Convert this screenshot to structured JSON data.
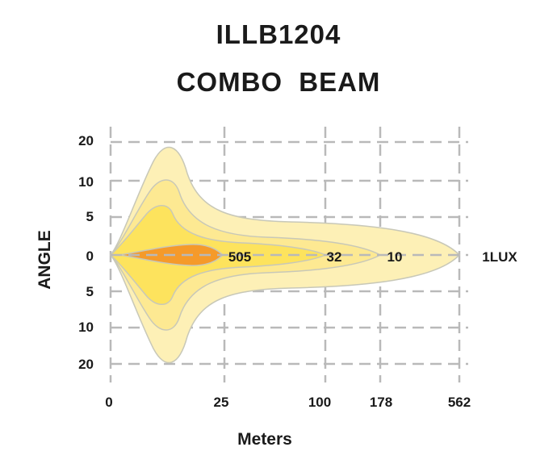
{
  "chart_data": {
    "type": "area",
    "title": "ILLB1204",
    "subtitle": "COMBO  BEAM",
    "xlabel": "Meters",
    "ylabel": "ANGLE",
    "x_ticks": [
      "0",
      "25",
      "100",
      "178",
      "562"
    ],
    "x_tick_values": [
      0,
      25,
      100,
      178,
      562
    ],
    "y_ticks_upper": [
      "20",
      "10",
      "5"
    ],
    "y_tick_center": "0",
    "y_ticks_lower": [
      "5",
      "10",
      "20"
    ],
    "grid": true,
    "series": [
      {
        "name": "1LUX",
        "reach_m": 562,
        "max_angle": 20,
        "color": "#fdf0b6"
      },
      {
        "name": "10",
        "reach_m": 178,
        "max_angle": 10,
        "color": "#fde992"
      },
      {
        "name": "32",
        "reach_m": 100,
        "max_angle": 5,
        "color": "#fde35d"
      },
      {
        "name": "505",
        "reach_m": 25,
        "max_angle": 1,
        "color": "#f59a2a"
      }
    ],
    "gridline_color": "#b9b9b9",
    "outline_color": "#c8c8b8"
  }
}
